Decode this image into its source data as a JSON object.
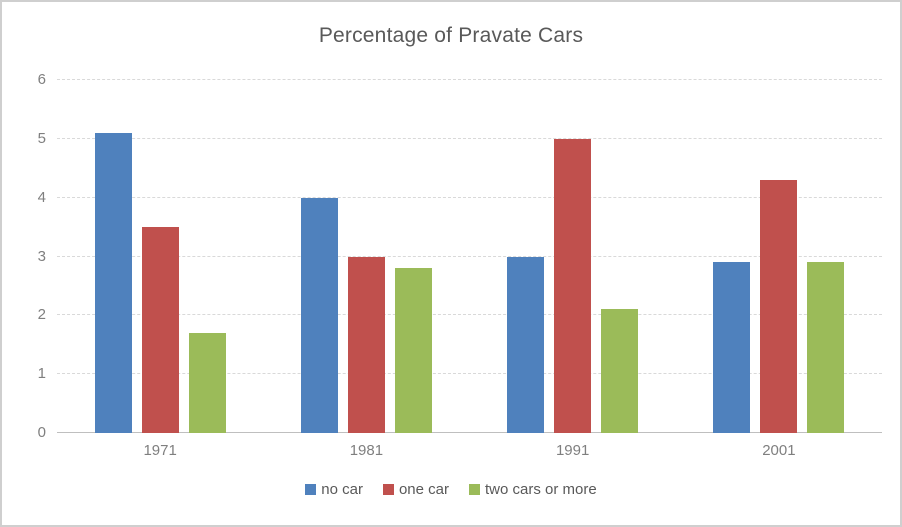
{
  "chart_data": {
    "type": "bar",
    "title": "Percentage of Pravate Cars",
    "categories": [
      "1971",
      "1981",
      "1991",
      "2001"
    ],
    "series": [
      {
        "name": "no car",
        "color": "#4F81BD",
        "values": [
          5.1,
          4.0,
          3.0,
          2.9
        ]
      },
      {
        "name": "one car",
        "color": "#C0504D",
        "values": [
          3.5,
          3.0,
          5.0,
          4.3
        ]
      },
      {
        "name": "two cars or more",
        "color": "#9BBB59",
        "values": [
          1.7,
          2.8,
          2.1,
          2.9
        ]
      }
    ],
    "xlabel": "",
    "ylabel": "",
    "ylim": [
      0,
      6
    ],
    "y_ticks": [
      0,
      1,
      2,
      3,
      4,
      5,
      6
    ],
    "grid": true,
    "legend_position": "bottom"
  },
  "colors": {
    "title_text": "#595959",
    "tick_text": "#7f7f7f",
    "gridline": "#d9d9d9",
    "axis_line": "#bfbfbf",
    "border": "#cfcfcf",
    "background": "#ffffff"
  }
}
